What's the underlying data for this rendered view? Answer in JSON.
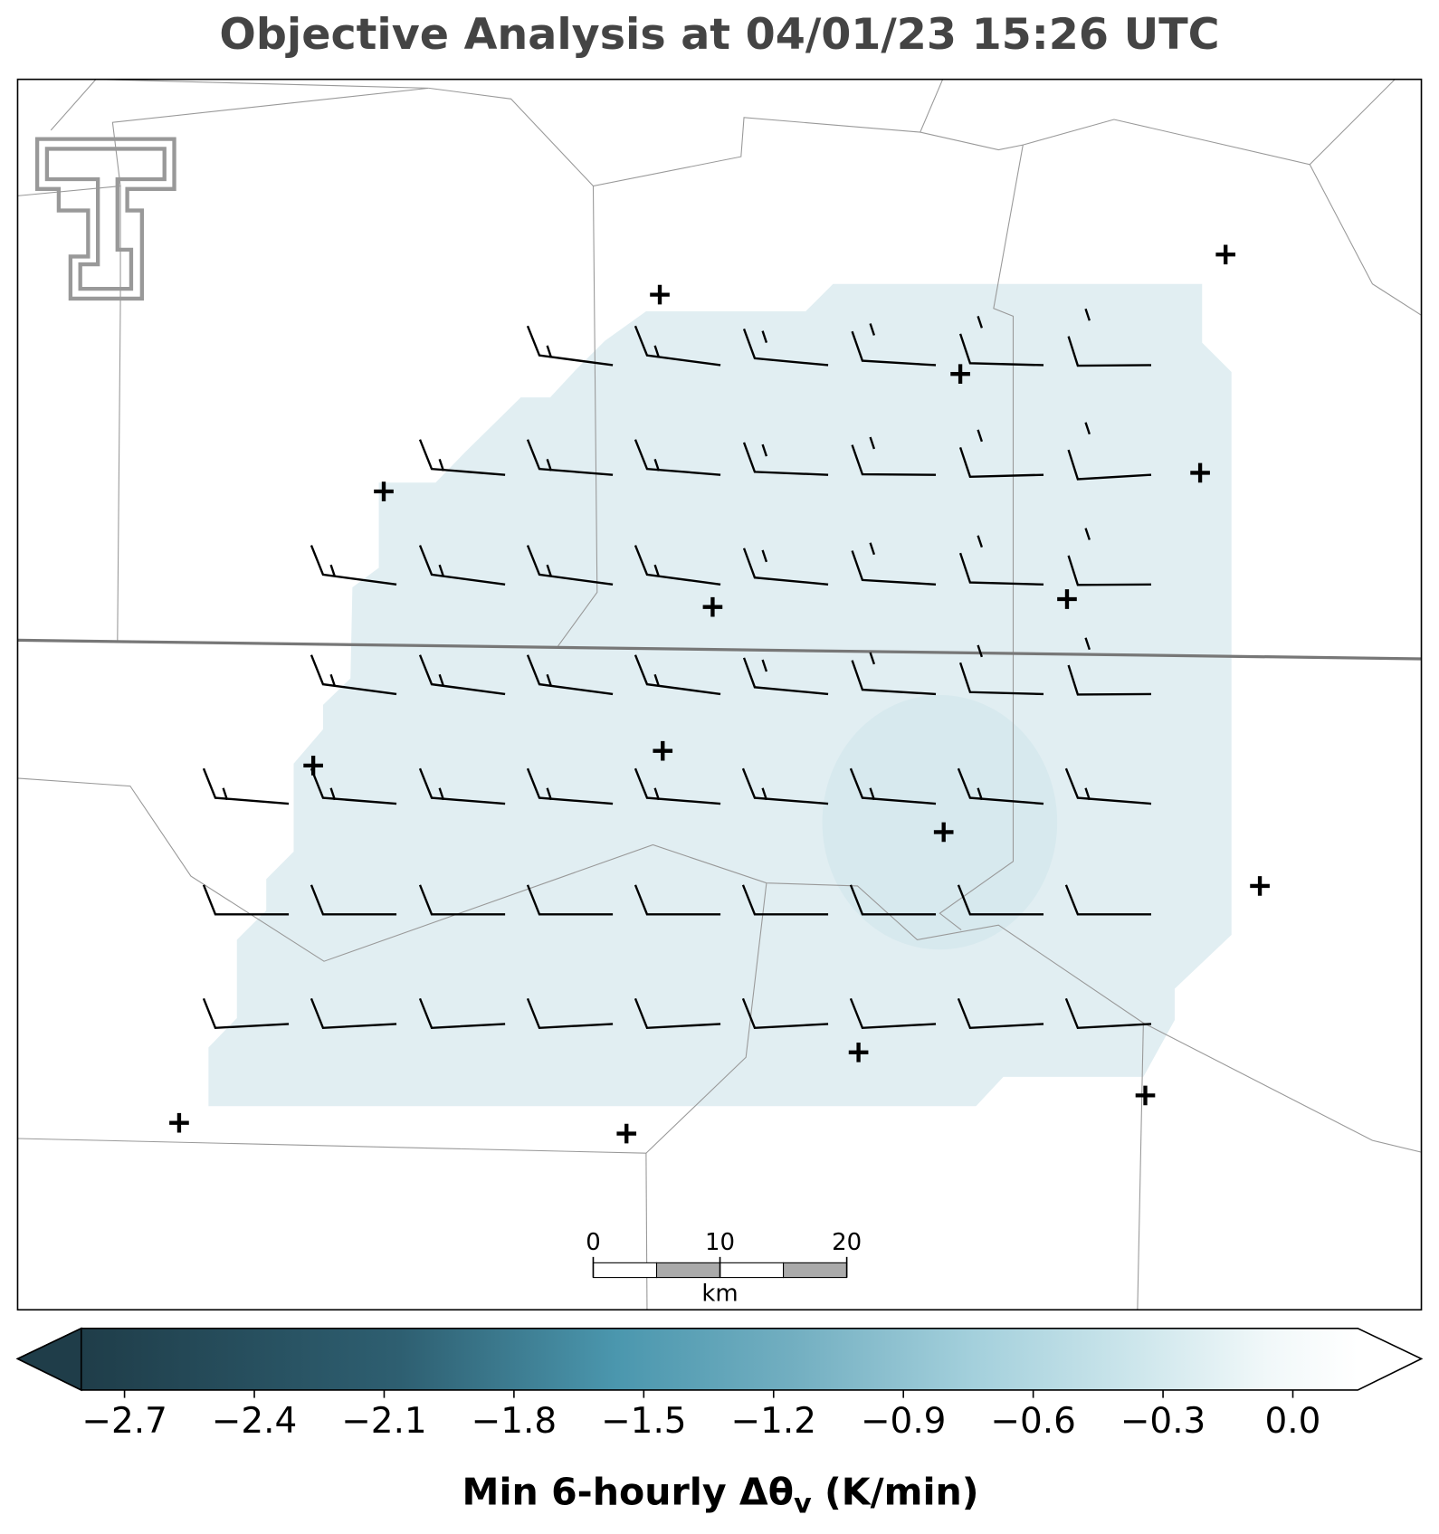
{
  "title": "Objective Analysis at 04/01/23 15:26 UTC",
  "colorbar": {
    "xlim": [
      -2.8,
      0.15
    ],
    "xticks": [
      {
        "value": -2.7,
        "label": "−2.7"
      },
      {
        "value": -2.4,
        "label": "−2.4"
      },
      {
        "value": -2.1,
        "label": "−2.1"
      },
      {
        "value": -1.8,
        "label": "−1.8"
      },
      {
        "value": -1.5,
        "label": "−1.5"
      },
      {
        "value": -1.2,
        "label": "−1.2"
      },
      {
        "value": -0.9,
        "label": "−0.9"
      },
      {
        "value": -0.6,
        "label": "−0.6"
      },
      {
        "value": -0.3,
        "label": "−0.3"
      },
      {
        "value": 0.0,
        "label": "0.0"
      }
    ],
    "label": {
      "main": "Min 6-hourly Δθ",
      "subscript": "v",
      "unit": "(K/min)"
    }
  },
  "scale_bar": {
    "ticks": [
      0,
      10,
      20
    ],
    "unit": "km"
  }
}
